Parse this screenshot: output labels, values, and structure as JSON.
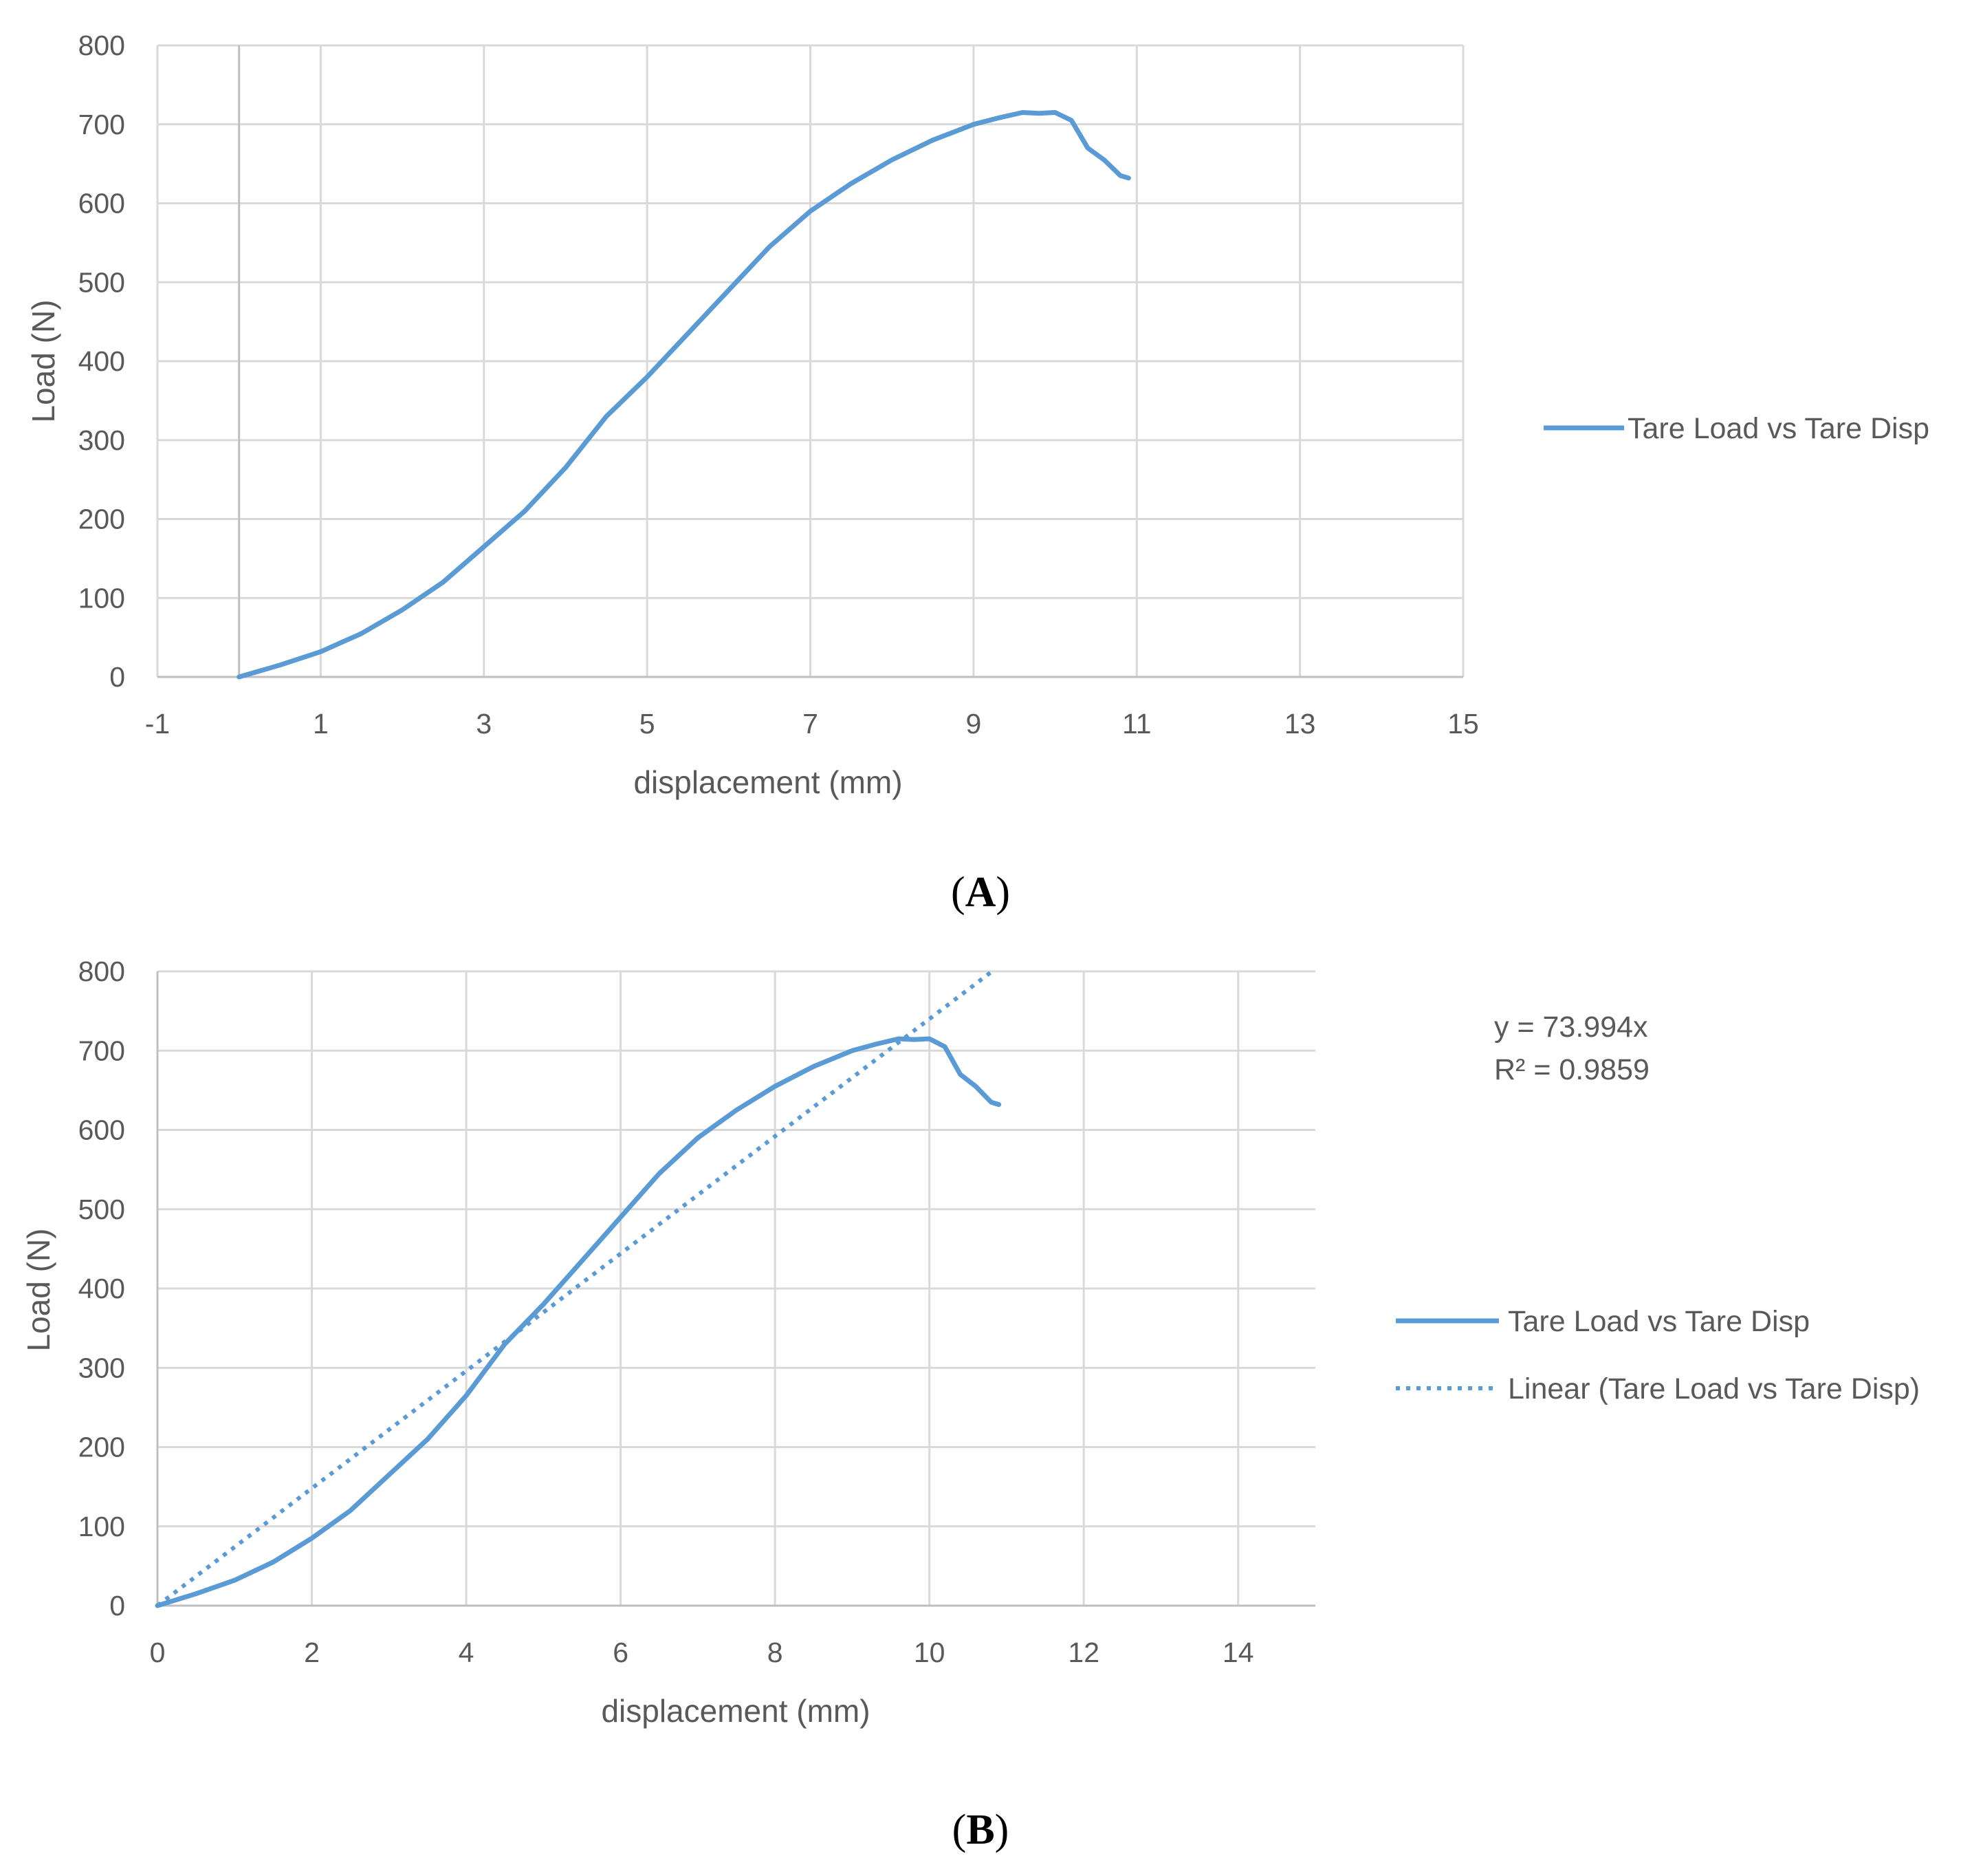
{
  "chart_data": [
    {
      "type": "line",
      "panel_label": "A",
      "xlabel": "displacement (mm)",
      "ylabel": "Load (N)",
      "xlim": [
        -1,
        15
      ],
      "ylim": [
        0,
        800
      ],
      "xticks": [
        "-1",
        "1",
        "3",
        "5",
        "7",
        "9",
        "11",
        "13",
        "15"
      ],
      "yticks": [
        "0",
        "100",
        "200",
        "300",
        "400",
        "500",
        "600",
        "700",
        "800"
      ],
      "grid": true,
      "legend": "right",
      "series": [
        {
          "name": "Tare Load vs Tare Disp",
          "style": "solid",
          "color": "#5b9bd5",
          "x": [
            0,
            0.5,
            1,
            1.5,
            2,
            2.5,
            3,
            3.5,
            4,
            4.5,
            5,
            5.5,
            6,
            6.5,
            7,
            7.5,
            8,
            8.5,
            9,
            9.3,
            9.6,
            9.8,
            10,
            10.2,
            10.4,
            10.6,
            10.8,
            10.9
          ],
          "y": [
            0,
            15,
            32,
            55,
            85,
            120,
            165,
            210,
            265,
            330,
            380,
            435,
            490,
            545,
            590,
            625,
            655,
            680,
            700,
            708,
            715,
            714,
            715,
            705,
            670,
            655,
            635,
            632
          ]
        }
      ]
    },
    {
      "type": "line",
      "panel_label": "B",
      "xlabel": "displacement (mm)",
      "ylabel": "Load (N)",
      "xlim": [
        0,
        15
      ],
      "ylim": [
        0,
        800
      ],
      "xticks": [
        "0",
        "2",
        "4",
        "6",
        "8",
        "10",
        "12",
        "14"
      ],
      "yticks": [
        "0",
        "100",
        "200",
        "300",
        "400",
        "500",
        "600",
        "700",
        "800"
      ],
      "grid": true,
      "legend": "right",
      "trendline_equation": "y = 73.994x",
      "trendline_r2": "R² = 0.9859",
      "series": [
        {
          "name": "Tare Load vs Tare Disp",
          "style": "solid",
          "color": "#5b9bd5",
          "x": [
            0,
            0.5,
            1,
            1.5,
            2,
            2.5,
            3,
            3.5,
            4,
            4.5,
            5,
            5.5,
            6,
            6.5,
            7,
            7.5,
            8,
            8.5,
            9,
            9.3,
            9.6,
            9.8,
            10,
            10.2,
            10.4,
            10.6,
            10.8,
            10.9
          ],
          "y": [
            0,
            15,
            32,
            55,
            85,
            120,
            165,
            210,
            265,
            330,
            380,
            435,
            490,
            545,
            590,
            625,
            655,
            680,
            700,
            708,
            715,
            714,
            715,
            705,
            670,
            655,
            635,
            632
          ]
        },
        {
          "name": "Linear (Tare Load vs Tare Disp)",
          "style": "dotted",
          "color": "#5b9bd5",
          "slope": 73.994,
          "x_end": 10.81
        }
      ]
    }
  ]
}
